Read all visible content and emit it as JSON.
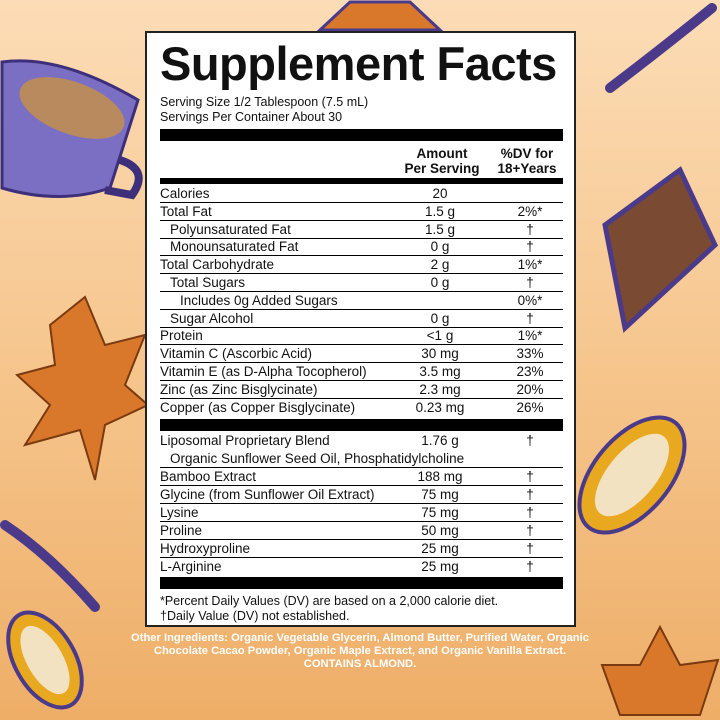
{
  "title": "Supplement Facts",
  "serving_size": "Serving Size 1/2 Tablespoon (7.5 mL)",
  "servings_per_container": "Servings Per Container About 30",
  "col_amount": [
    "Amount",
    "Per Serving"
  ],
  "col_dv": [
    "%DV for",
    "18+Years"
  ],
  "rows": [
    {
      "name": "Calories",
      "amount": "20",
      "dv": "",
      "indent": 0
    },
    {
      "name": "Total Fat",
      "amount": "1.5 g",
      "dv": "2%*",
      "indent": 0
    },
    {
      "name": "Polyunsaturated Fat",
      "amount": "1.5 g",
      "dv": "†",
      "indent": 1
    },
    {
      "name": "Monounsaturated Fat",
      "amount": "0 g",
      "dv": "†",
      "indent": 1
    },
    {
      "name": "Total Carbohydrate",
      "amount": "2 g",
      "dv": "1%*",
      "indent": 0
    },
    {
      "name": "Total Sugars",
      "amount": "0 g",
      "dv": "†",
      "indent": 1
    },
    {
      "name": "Includes 0g Added Sugars",
      "amount": "",
      "dv": "0%*",
      "indent": 2
    },
    {
      "name": "Sugar Alcohol",
      "amount": "0 g",
      "dv": "†",
      "indent": 1
    },
    {
      "name": "Protein",
      "amount": "<1 g",
      "dv": "1%*",
      "indent": 0
    },
    {
      "name": "Vitamin C (Ascorbic Acid)",
      "amount": "30 mg",
      "dv": "33%",
      "indent": 0
    },
    {
      "name": "Vitamin E (as D-Alpha Tocopherol)",
      "amount": "3.5 mg",
      "dv": "23%",
      "indent": 0
    },
    {
      "name": "Zinc (as Zinc Bisglycinate)",
      "amount": "2.3 mg",
      "dv": "20%",
      "indent": 0
    },
    {
      "name": "Copper (as Copper Bisglycinate)",
      "amount": "0.23 mg",
      "dv": "26%",
      "indent": 0
    }
  ],
  "blend": {
    "name": "Liposomal Proprietary Blend",
    "amount": "1.76 g",
    "dv": "†",
    "detail": "Organic Sunflower Seed Oil, Phosphatidylcholine"
  },
  "rows2": [
    {
      "name": "Bamboo Extract",
      "amount": "188 mg",
      "dv": "†"
    },
    {
      "name": "Glycine (from Sunflower Oil Extract)",
      "amount": "75 mg",
      "dv": "†"
    },
    {
      "name": "Lysine",
      "amount": "75 mg",
      "dv": "†"
    },
    {
      "name": "Proline",
      "amount": "50 mg",
      "dv": "†"
    },
    {
      "name": "Hydroxyproline",
      "amount": "25 mg",
      "dv": "†"
    },
    {
      "name": "L-Arginine",
      "amount": "25 mg",
      "dv": "†"
    }
  ],
  "footnote1": "*Percent Daily Values (DV) are based on a 2,000 calorie diet.",
  "footnote2": "†Daily Value (DV) not established.",
  "other_ingredients": "Other Ingredients: Organic Vegetable Glycerin, Almond Butter, Purified Water, Organic Chocolate Cacao Powder, Organic Maple Extract, and Organic Vanilla Extract.",
  "contains": "CONTAINS ALMOND.",
  "colors": {
    "background": "#f6c68e",
    "leaf": "#d9782a",
    "outline": "#4b3a8a",
    "cup": "#7b6fc4",
    "chocolate": "#7a4a32",
    "pod": "#e8a820"
  }
}
